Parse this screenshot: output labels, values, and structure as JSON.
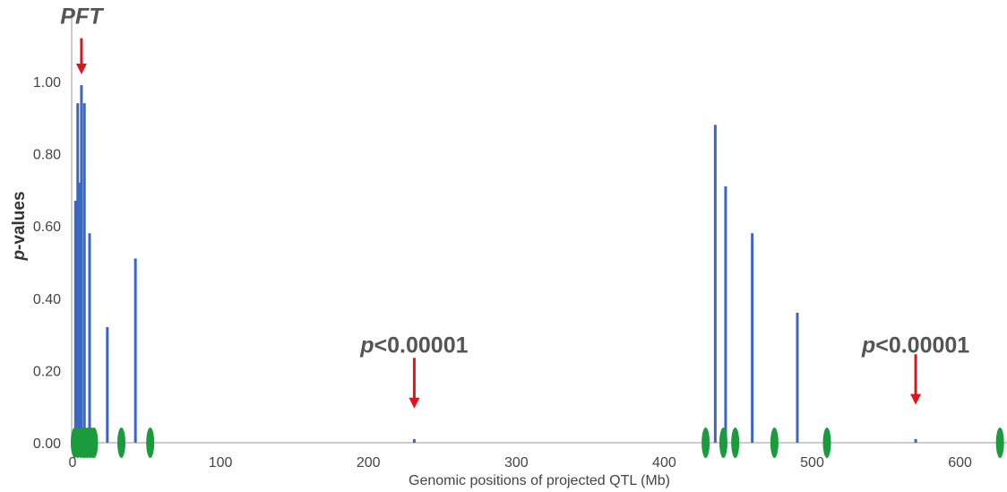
{
  "chart_data": {
    "type": "bar",
    "title": "",
    "xlabel": "Genomic positions of projected QTL (Mb)",
    "ylabel_italic": "p",
    "ylabel_rest": "-values",
    "xlim": [
      0,
      630
    ],
    "ylim": [
      0,
      1.15
    ],
    "xticks": [
      0,
      100,
      200,
      300,
      400,
      500,
      600
    ],
    "xtick_labels": [
      "0",
      "100",
      "200",
      "300",
      "400",
      "500",
      "600"
    ],
    "yticks": [
      0,
      0.2,
      0.4,
      0.6,
      0.8,
      1.0
    ],
    "ytick_labels": [
      "0.00",
      "0.20",
      "0.40",
      "0.60",
      "0.80",
      "1.00"
    ],
    "grid": false,
    "bar_color": "#3a66c4",
    "marker_color": "#1a9c3c",
    "arrow_color": "#e0151b",
    "bars": [
      {
        "x": 2.0,
        "y": 0.67
      },
      {
        "x": 3.5,
        "y": 0.94
      },
      {
        "x": 5.0,
        "y": 0.72
      },
      {
        "x": 6.0,
        "y": 0.99
      },
      {
        "x": 8.0,
        "y": 0.94
      },
      {
        "x": 11.5,
        "y": 0.58
      },
      {
        "x": 23.5,
        "y": 0.32
      },
      {
        "x": 42.5,
        "y": 0.51
      },
      {
        "x": 231.0,
        "y": 0.01
      },
      {
        "x": 434.5,
        "y": 0.88
      },
      {
        "x": 441.5,
        "y": 0.71
      },
      {
        "x": 459.5,
        "y": 0.58
      },
      {
        "x": 490.0,
        "y": 0.36
      },
      {
        "x": 570.0,
        "y": 0.01
      }
    ],
    "qtl_markers": [
      1.5,
      3.5,
      5.5,
      7.0,
      8.5,
      10.0,
      11.5,
      13.0,
      14.5,
      33.0,
      52.5,
      428.0,
      440.0,
      448.0,
      474.5,
      510.0,
      627.0
    ],
    "annotations": [
      {
        "text_italic": "PFT",
        "text_rest": "",
        "arrow_x": 6.0,
        "arrow_top": 1.12,
        "arrow_bottom": 1.02,
        "text_y": 1.16
      },
      {
        "text_italic": "p",
        "text_rest": "<0.00001",
        "arrow_x": 231.0,
        "arrow_top": 0.235,
        "arrow_bottom": 0.095,
        "text_y": 0.25
      },
      {
        "text_italic": "p",
        "text_rest": "<0.00001",
        "arrow_x": 570.0,
        "arrow_top": 0.245,
        "arrow_bottom": 0.105,
        "text_y": 0.25
      }
    ]
  }
}
